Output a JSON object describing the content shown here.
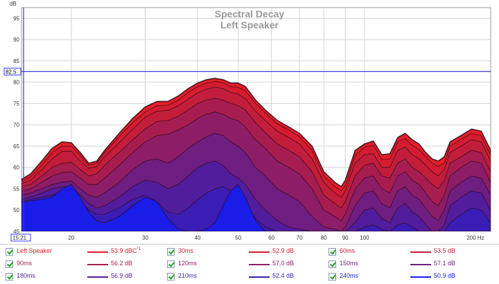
{
  "chart_data": {
    "type": "area",
    "title": "Spectral Decay",
    "subtitle": "Left Speaker",
    "xlabel": "Hz",
    "ylabel": "dB",
    "x_scale": "log",
    "xlim": [
      15.21,
      200
    ],
    "ylim": [
      45,
      97.5
    ],
    "x_ticks": [
      "15.21",
      "20",
      "30",
      "40",
      "50",
      "60",
      "70",
      "80",
      "90",
      "100",
      "200 Hz"
    ],
    "x_tick_values": [
      15.21,
      20,
      30,
      40,
      50,
      60,
      70,
      80,
      90,
      100,
      200
    ],
    "y_ticks": [
      45,
      50,
      55,
      60,
      65,
      70,
      75,
      80,
      85,
      90,
      95
    ],
    "cursor_y": {
      "label": "82.5",
      "value": 82.5
    },
    "y_unit": "dB",
    "x": [
      15.21,
      16,
      17,
      18,
      19,
      20,
      21,
      22,
      23,
      24,
      26,
      28,
      30,
      32,
      34,
      36,
      38,
      40,
      42,
      44,
      46,
      48,
      50,
      52,
      55,
      58,
      62,
      66,
      70,
      75,
      80,
      85,
      88,
      90,
      95,
      100,
      105,
      110,
      115,
      120,
      125,
      130,
      135,
      140,
      145,
      150,
      155,
      160,
      170,
      180,
      190,
      200
    ],
    "series": [
      {
        "name": "Left Speaker",
        "legend_value": "53.9 dBC",
        "legend_mark": "*1",
        "color": "#e61e28",
        "values": [
          57.2,
          58.5,
          61.5,
          64.5,
          66.0,
          65.8,
          63.5,
          61.0,
          61.5,
          64.0,
          68.0,
          71.5,
          74.2,
          75.5,
          75.5,
          76.8,
          78.5,
          79.8,
          80.6,
          80.9,
          80.6,
          79.8,
          79.8,
          79.0,
          75.8,
          73.5,
          71.0,
          69.5,
          68.0,
          65.0,
          59.0,
          56.5,
          55.5,
          57.0,
          64.0,
          65.5,
          66.2,
          63.0,
          63.2,
          67.0,
          68.0,
          66.5,
          65.5,
          63.5,
          62.0,
          61.5,
          62.5,
          66.0,
          67.5,
          69.0,
          68.5,
          64.0
        ]
      },
      {
        "name": "30ms",
        "legend_value": "52.9 dB",
        "color": "#d41c30",
        "values": [
          56.8,
          57.8,
          60.5,
          63.5,
          65.0,
          65.0,
          62.8,
          60.5,
          61.0,
          63.5,
          67.2,
          70.5,
          73.0,
          74.5,
          74.6,
          75.8,
          77.6,
          79.0,
          79.8,
          80.2,
          79.9,
          79.0,
          78.8,
          78.0,
          75.0,
          72.8,
          70.2,
          68.8,
          67.2,
          64.0,
          58.0,
          55.5,
          54.5,
          55.8,
          62.8,
          64.8,
          65.2,
          61.8,
          62.0,
          66.0,
          66.8,
          65.2,
          64.2,
          62.5,
          61.0,
          60.2,
          61.0,
          65.0,
          66.6,
          68.0,
          67.4,
          62.8
        ]
      },
      {
        "name": "60ms",
        "legend_value": "53.5 dB",
        "color": "#c21d3a",
        "values": [
          56.2,
          57.0,
          59.5,
          62.0,
          63.8,
          63.8,
          61.5,
          59.8,
          60.2,
          62.5,
          65.8,
          69.0,
          71.8,
          73.2,
          73.4,
          74.5,
          76.0,
          77.5,
          78.4,
          78.8,
          78.5,
          77.6,
          77.2,
          76.2,
          73.2,
          71.0,
          68.5,
          67.0,
          65.5,
          62.0,
          56.5,
          54.0,
          53.0,
          54.5,
          61.0,
          63.0,
          63.2,
          60.0,
          60.0,
          64.0,
          64.8,
          63.0,
          62.0,
          60.5,
          59.0,
          58.0,
          59.5,
          63.5,
          65.0,
          66.5,
          66.0,
          61.5
        ]
      },
      {
        "name": "90ms",
        "legend_value": "56.2 dB",
        "color": "#a81d4f",
        "values": [
          55.5,
          56.0,
          58.0,
          60.0,
          61.0,
          61.2,
          59.5,
          58.0,
          58.5,
          60.5,
          63.5,
          66.5,
          69.0,
          70.8,
          71.0,
          72.0,
          73.5,
          75.0,
          75.8,
          76.2,
          75.8,
          75.0,
          74.5,
          73.5,
          70.5,
          68.2,
          65.5,
          64.0,
          62.5,
          59.0,
          53.5,
          51.5,
          50.5,
          52.0,
          58.0,
          60.5,
          61.0,
          58.0,
          57.5,
          61.0,
          62.0,
          60.0,
          59.0,
          57.5,
          56.0,
          55.0,
          57.0,
          61.0,
          62.5,
          64.0,
          63.5,
          59.0
        ]
      },
      {
        "name": "120ms",
        "legend_value": "57.0 dB",
        "color": "#8c1d66",
        "values": [
          54.5,
          55.0,
          56.5,
          58.0,
          58.8,
          59.0,
          57.5,
          56.0,
          56.0,
          57.5,
          60.5,
          63.5,
          66.0,
          67.5,
          67.8,
          68.8,
          70.0,
          71.5,
          72.5,
          73.0,
          72.5,
          71.5,
          71.0,
          69.5,
          66.5,
          64.5,
          61.5,
          60.0,
          58.5,
          55.0,
          50.0,
          48.5,
          47.5,
          49.0,
          55.0,
          57.5,
          58.0,
          55.0,
          54.0,
          58.0,
          59.0,
          57.0,
          56.0,
          54.0,
          52.0,
          51.0,
          53.5,
          58.0,
          60.0,
          61.5,
          61.0,
          56.5
        ]
      },
      {
        "name": "150ms",
        "legend_value": "57.1 dB",
        "color": "#6e1d80",
        "values": [
          53.5,
          54.0,
          55.0,
          56.0,
          56.5,
          56.8,
          55.0,
          53.5,
          53.0,
          54.0,
          56.5,
          59.5,
          61.5,
          62.0,
          61.0,
          62.5,
          64.5,
          66.0,
          67.2,
          68.0,
          67.5,
          66.0,
          65.0,
          63.5,
          60.0,
          58.0,
          55.0,
          53.5,
          52.0,
          48.5,
          46.0,
          45.5,
          45.0,
          46.0,
          51.0,
          54.0,
          54.5,
          51.5,
          50.5,
          54.5,
          55.5,
          53.5,
          52.5,
          50.5,
          48.5,
          47.5,
          50.0,
          54.5,
          56.5,
          58.0,
          57.5,
          53.5
        ]
      },
      {
        "name": "180ms",
        "legend_value": "56.9 dB",
        "color": "#521d9c",
        "values": [
          52.5,
          53.0,
          54.0,
          55.0,
          55.5,
          55.5,
          53.5,
          51.5,
          50.5,
          51.0,
          53.0,
          55.5,
          57.0,
          56.5,
          55.0,
          56.0,
          58.0,
          60.0,
          61.0,
          61.5,
          60.5,
          58.5,
          57.5,
          56.0,
          52.5,
          50.0,
          47.5,
          46.0,
          45.5,
          45.0,
          45.0,
          45.0,
          45.0,
          45.0,
          47.0,
          50.0,
          50.5,
          48.0,
          47.0,
          50.5,
          51.5,
          49.5,
          48.5,
          46.5,
          45.0,
          45.0,
          46.5,
          51.0,
          53.0,
          54.5,
          54.0,
          50.0
        ]
      },
      {
        "name": "210ms",
        "legend_value": "52.4 dB",
        "color": "#3a1db5",
        "values": [
          52.0,
          52.5,
          53.0,
          53.5,
          54.0,
          54.0,
          52.0,
          50.0,
          49.0,
          49.0,
          50.5,
          52.5,
          53.5,
          52.0,
          49.5,
          49.0,
          50.5,
          52.5,
          54.0,
          55.0,
          55.5,
          54.5,
          53.5,
          51.5,
          48.0,
          46.0,
          45.0,
          45.0,
          45.0,
          45.0,
          45.0,
          45.0,
          45.0,
          45.0,
          45.0,
          46.0,
          46.5,
          45.5,
          45.0,
          46.5,
          47.0,
          46.0,
          45.0,
          45.0,
          45.0,
          45.0,
          45.0,
          47.0,
          49.0,
          50.5,
          50.0,
          47.0
        ]
      },
      {
        "name": "240ms",
        "legend_value": "50.9 dB",
        "color": "#1a1de8",
        "values": [
          51.8,
          52.2,
          52.5,
          53.0,
          55.0,
          56.0,
          53.0,
          49.5,
          47.5,
          47.0,
          48.5,
          51.0,
          53.0,
          52.0,
          48.0,
          45.5,
          45.0,
          45.0,
          45.5,
          47.0,
          51.0,
          54.5,
          56.0,
          53.0,
          47.5,
          45.0,
          45.0,
          45.0,
          45.0,
          45.0,
          45.0,
          45.0,
          45.0,
          45.0,
          45.0,
          45.0,
          45.0,
          45.0,
          45.0,
          45.0,
          45.0,
          45.0,
          45.0,
          45.0,
          45.0,
          45.0,
          45.0,
          45.0,
          45.0,
          45.0,
          45.0,
          45.0
        ]
      }
    ]
  }
}
